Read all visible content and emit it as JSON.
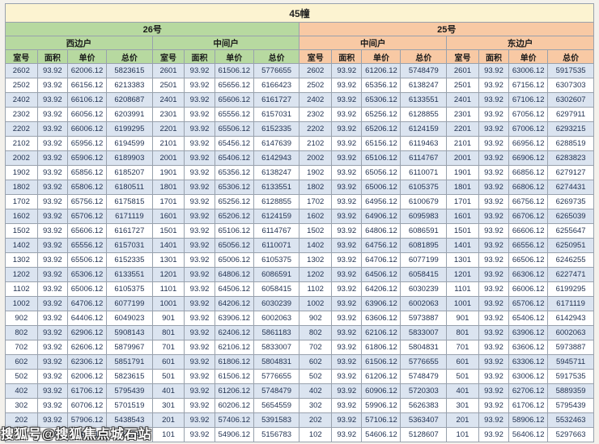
{
  "title": "45幢",
  "buildings": [
    {
      "label": "26号",
      "units": [
        "西边户",
        "中间户"
      ]
    },
    {
      "label": "25号",
      "units": [
        "中间户",
        "东边户"
      ]
    }
  ],
  "column_headers": [
    "室号",
    "面积",
    "单价",
    "总价"
  ],
  "watermark": "搜狐号@搜狐焦点城石站",
  "colors": {
    "title_bg": "#fcf3d1",
    "green_header": "#b7d9a0",
    "orange_header": "#f8c9a4",
    "row_alt": "#dbe4f0",
    "border": "#98a1ad",
    "text": "#1e2f4f"
  },
  "rows": [
    [
      "2602",
      "93.92",
      "62006.12",
      "5823615",
      "2601",
      "93.92",
      "61506.12",
      "5776655",
      "2602",
      "93.92",
      "61206.12",
      "5748479",
      "2601",
      "93.92",
      "63006.12",
      "5917535"
    ],
    [
      "2502",
      "93.92",
      "66156.12",
      "6213383",
      "2501",
      "93.92",
      "65656.12",
      "6166423",
      "2502",
      "93.92",
      "65356.12",
      "6138247",
      "2501",
      "93.92",
      "67156.12",
      "6307303"
    ],
    [
      "2402",
      "93.92",
      "66106.12",
      "6208687",
      "2401",
      "93.92",
      "65606.12",
      "6161727",
      "2402",
      "93.92",
      "65306.12",
      "6133551",
      "2401",
      "93.92",
      "67106.12",
      "6302607"
    ],
    [
      "2302",
      "93.92",
      "66056.12",
      "6203991",
      "2301",
      "93.92",
      "65556.12",
      "6157031",
      "2302",
      "93.92",
      "65256.12",
      "6128855",
      "2301",
      "93.92",
      "67056.12",
      "6297911"
    ],
    [
      "2202",
      "93.92",
      "66006.12",
      "6199295",
      "2201",
      "93.92",
      "65506.12",
      "6152335",
      "2202",
      "93.92",
      "65206.12",
      "6124159",
      "2201",
      "93.92",
      "67006.12",
      "6293215"
    ],
    [
      "2102",
      "93.92",
      "65956.12",
      "6194599",
      "2101",
      "93.92",
      "65456.12",
      "6147639",
      "2102",
      "93.92",
      "65156.12",
      "6119463",
      "2101",
      "93.92",
      "66956.12",
      "6288519"
    ],
    [
      "2002",
      "93.92",
      "65906.12",
      "6189903",
      "2001",
      "93.92",
      "65406.12",
      "6142943",
      "2002",
      "93.92",
      "65106.12",
      "6114767",
      "2001",
      "93.92",
      "66906.12",
      "6283823"
    ],
    [
      "1902",
      "93.92",
      "65856.12",
      "6185207",
      "1901",
      "93.92",
      "65356.12",
      "6138247",
      "1902",
      "93.92",
      "65056.12",
      "6110071",
      "1901",
      "93.92",
      "66856.12",
      "6279127"
    ],
    [
      "1802",
      "93.92",
      "65806.12",
      "6180511",
      "1801",
      "93.92",
      "65306.12",
      "6133551",
      "1802",
      "93.92",
      "65006.12",
      "6105375",
      "1801",
      "93.92",
      "66806.12",
      "6274431"
    ],
    [
      "1702",
      "93.92",
      "65756.12",
      "6175815",
      "1701",
      "93.92",
      "65256.12",
      "6128855",
      "1702",
      "93.92",
      "64956.12",
      "6100679",
      "1701",
      "93.92",
      "66756.12",
      "6269735"
    ],
    [
      "1602",
      "93.92",
      "65706.12",
      "6171119",
      "1601",
      "93.92",
      "65206.12",
      "6124159",
      "1602",
      "93.92",
      "64906.12",
      "6095983",
      "1601",
      "93.92",
      "66706.12",
      "6265039"
    ],
    [
      "1502",
      "93.92",
      "65606.12",
      "6161727",
      "1501",
      "93.92",
      "65106.12",
      "6114767",
      "1502",
      "93.92",
      "64806.12",
      "6086591",
      "1501",
      "93.92",
      "66606.12",
      "6255647"
    ],
    [
      "1402",
      "93.92",
      "65556.12",
      "6157031",
      "1401",
      "93.92",
      "65056.12",
      "6110071",
      "1402",
      "93.92",
      "64756.12",
      "6081895",
      "1401",
      "93.92",
      "66556.12",
      "6250951"
    ],
    [
      "1302",
      "93.92",
      "65506.12",
      "6152335",
      "1301",
      "93.92",
      "65006.12",
      "6105375",
      "1302",
      "93.92",
      "64706.12",
      "6077199",
      "1301",
      "93.92",
      "66506.12",
      "6246255"
    ],
    [
      "1202",
      "93.92",
      "65306.12",
      "6133551",
      "1201",
      "93.92",
      "64806.12",
      "6086591",
      "1202",
      "93.92",
      "64506.12",
      "6058415",
      "1201",
      "93.92",
      "66306.12",
      "6227471"
    ],
    [
      "1102",
      "93.92",
      "65006.12",
      "6105375",
      "1101",
      "93.92",
      "64506.12",
      "6058415",
      "1102",
      "93.92",
      "64206.12",
      "6030239",
      "1101",
      "93.92",
      "66006.12",
      "6199295"
    ],
    [
      "1002",
      "93.92",
      "64706.12",
      "6077199",
      "1001",
      "93.92",
      "64206.12",
      "6030239",
      "1002",
      "93.92",
      "63906.12",
      "6002063",
      "1001",
      "93.92",
      "65706.12",
      "6171119"
    ],
    [
      "902",
      "93.92",
      "64406.12",
      "6049023",
      "901",
      "93.92",
      "63906.12",
      "6002063",
      "902",
      "93.92",
      "63606.12",
      "5973887",
      "901",
      "93.92",
      "65406.12",
      "6142943"
    ],
    [
      "802",
      "93.92",
      "62906.12",
      "5908143",
      "801",
      "93.92",
      "62406.12",
      "5861183",
      "802",
      "93.92",
      "62106.12",
      "5833007",
      "801",
      "93.92",
      "63906.12",
      "6002063"
    ],
    [
      "702",
      "93.92",
      "62606.12",
      "5879967",
      "701",
      "93.92",
      "62106.12",
      "5833007",
      "702",
      "93.92",
      "61806.12",
      "5804831",
      "701",
      "93.92",
      "63606.12",
      "5973887"
    ],
    [
      "602",
      "93.92",
      "62306.12",
      "5851791",
      "601",
      "93.92",
      "61806.12",
      "5804831",
      "602",
      "93.92",
      "61506.12",
      "5776655",
      "601",
      "93.92",
      "63306.12",
      "5945711"
    ],
    [
      "502",
      "93.92",
      "62006.12",
      "5823615",
      "501",
      "93.92",
      "61506.12",
      "5776655",
      "502",
      "93.92",
      "61206.12",
      "5748479",
      "501",
      "93.92",
      "63006.12",
      "5917535"
    ],
    [
      "402",
      "93.92",
      "61706.12",
      "5795439",
      "401",
      "93.92",
      "61206.12",
      "5748479",
      "402",
      "93.92",
      "60906.12",
      "5720303",
      "401",
      "93.92",
      "62706.12",
      "5889359"
    ],
    [
      "302",
      "93.92",
      "60706.12",
      "5701519",
      "301",
      "93.92",
      "60206.12",
      "5654559",
      "302",
      "93.92",
      "59906.12",
      "5626383",
      "301",
      "93.92",
      "61706.12",
      "5795439"
    ],
    [
      "202",
      "93.92",
      "57906.12",
      "5438543",
      "201",
      "93.92",
      "57406.12",
      "5391583",
      "202",
      "93.92",
      "57106.12",
      "5363407",
      "201",
      "93.92",
      "58906.12",
      "5532463"
    ],
    [
      "102",
      "93.92",
      "55406.12",
      "5203743",
      "101",
      "93.92",
      "54906.12",
      "5156783",
      "102",
      "93.92",
      "54606.12",
      "5128607",
      "101",
      "93.92",
      "56406.12",
      "5297663"
    ]
  ]
}
